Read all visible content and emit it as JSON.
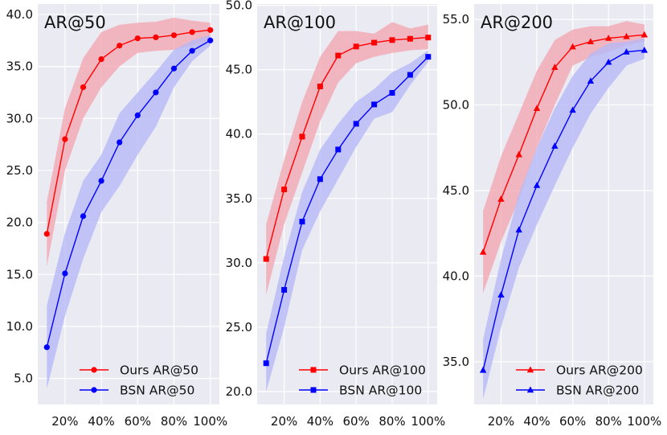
{
  "chart_data": [
    {
      "type": "line",
      "title": "AR@50",
      "x": [
        0.1,
        0.2,
        0.3,
        0.4,
        0.5,
        0.6,
        0.7,
        0.8,
        0.9,
        1.0
      ],
      "xticks": [
        "20%",
        "40%",
        "60%",
        "80%",
        "100%"
      ],
      "xtick_values": [
        0.2,
        0.4,
        0.6,
        0.8,
        1.0
      ],
      "xlim": [
        0.05,
        1.05
      ],
      "ylim": [
        2.5,
        41.0
      ],
      "yticks": [
        5.0,
        10.0,
        15.0,
        20.0,
        25.0,
        30.0,
        35.0,
        40.0
      ],
      "yticklabels": [
        "5.0",
        "10.0",
        "15.0",
        "20.0",
        "25.0",
        "30.0",
        "35.0",
        "40.0"
      ],
      "grid": true,
      "legend": "lower-right",
      "marker": "circle",
      "series": [
        {
          "name": "Ours AR@50",
          "color": "#ff0000",
          "values": [
            18.9,
            28.0,
            33.0,
            35.7,
            37.0,
            37.7,
            37.8,
            38.0,
            38.3,
            38.5
          ],
          "lower": [
            15.8,
            25.0,
            30.0,
            33.0,
            35.0,
            36.3,
            36.5,
            36.6,
            37.0,
            37.5
          ],
          "upper": [
            22.0,
            31.0,
            35.8,
            38.3,
            39.0,
            39.2,
            39.3,
            39.7,
            39.4,
            39.2
          ]
        },
        {
          "name": "BSN AR@50",
          "color": "#0000ff",
          "values": [
            8.0,
            15.1,
            20.6,
            24.0,
            27.7,
            30.3,
            32.5,
            34.8,
            36.5,
            37.5
          ],
          "lower": [
            4.0,
            11.0,
            16.5,
            21.0,
            23.5,
            26.5,
            29.2,
            33.0,
            35.5,
            37.0
          ],
          "upper": [
            12.0,
            19.0,
            24.0,
            26.5,
            30.5,
            32.5,
            34.5,
            36.6,
            37.5,
            38.0
          ]
        }
      ]
    },
    {
      "type": "line",
      "title": "AR@100",
      "x": [
        0.1,
        0.2,
        0.3,
        0.4,
        0.5,
        0.6,
        0.7,
        0.8,
        0.9,
        1.0
      ],
      "xticks": [
        "20%",
        "40%",
        "60%",
        "80%",
        "100%"
      ],
      "xtick_values": [
        0.2,
        0.4,
        0.6,
        0.8,
        1.0
      ],
      "xlim": [
        0.05,
        1.05
      ],
      "ylim": [
        19.0,
        50.1
      ],
      "yticks": [
        20.0,
        25.0,
        30.0,
        35.0,
        40.0,
        45.0,
        50.0
      ],
      "yticklabels": [
        "20.0",
        "25.0",
        "30.0",
        "35.0",
        "40.0",
        "45.0",
        "50.0"
      ],
      "grid": true,
      "legend": "lower-right",
      "marker": "square",
      "series": [
        {
          "name": "Ours AR@100",
          "color": "#ff0000",
          "values": [
            30.3,
            35.7,
            39.8,
            43.7,
            46.1,
            46.8,
            47.1,
            47.3,
            47.4,
            47.5
          ],
          "lower": [
            27.5,
            33.0,
            37.0,
            41.0,
            44.0,
            45.5,
            46.0,
            46.3,
            46.5,
            46.6
          ],
          "upper": [
            33.0,
            38.0,
            42.5,
            46.0,
            48.0,
            48.0,
            47.8,
            48.7,
            48.2,
            48.5
          ]
        },
        {
          "name": "BSN AR@100",
          "color": "#0000ff",
          "values": [
            22.2,
            27.9,
            33.2,
            36.5,
            38.8,
            40.8,
            42.3,
            43.2,
            44.6,
            46.0
          ],
          "lower": [
            20.0,
            25.0,
            31.0,
            34.0,
            36.5,
            39.0,
            41.2,
            41.7,
            43.8,
            45.6
          ],
          "upper": [
            24.5,
            30.5,
            35.5,
            38.8,
            40.8,
            42.5,
            43.5,
            44.8,
            45.5,
            46.5
          ]
        }
      ]
    },
    {
      "type": "line",
      "title": "AR@200",
      "x": [
        0.1,
        0.2,
        0.3,
        0.4,
        0.5,
        0.6,
        0.7,
        0.8,
        0.9,
        1.0
      ],
      "xticks": [
        "20%",
        "40%",
        "60%",
        "80%",
        "100%"
      ],
      "xtick_values": [
        0.2,
        0.4,
        0.6,
        0.8,
        1.0
      ],
      "xlim": [
        0.05,
        1.05
      ],
      "ylim": [
        32.5,
        55.9
      ],
      "yticks": [
        35.0,
        40.0,
        45.0,
        50.0,
        55.0
      ],
      "yticklabels": [
        "35.0",
        "40.0",
        "45.0",
        "50.0",
        "55.0"
      ],
      "grid": true,
      "legend": "lower-right",
      "marker": "triangle",
      "series": [
        {
          "name": "Ours AR@200",
          "color": "#ff0000",
          "values": [
            41.4,
            44.5,
            47.1,
            49.8,
            52.2,
            53.4,
            53.7,
            53.9,
            54.0,
            54.1
          ],
          "lower": [
            39.0,
            42.0,
            44.5,
            47.5,
            50.0,
            52.3,
            52.8,
            53.1,
            53.5,
            53.7
          ],
          "upper": [
            43.8,
            47.0,
            49.5,
            52.0,
            53.8,
            54.4,
            54.6,
            54.6,
            54.9,
            54.7
          ]
        },
        {
          "name": "BSN AR@200",
          "color": "#0000ff",
          "values": [
            34.5,
            38.9,
            42.7,
            45.3,
            47.6,
            49.7,
            51.4,
            52.5,
            53.1,
            53.2
          ],
          "lower": [
            32.8,
            37.0,
            40.5,
            43.0,
            45.3,
            47.5,
            49.5,
            51.0,
            52.3,
            52.7
          ],
          "upper": [
            36.3,
            41.0,
            44.8,
            47.5,
            49.8,
            51.7,
            53.0,
            53.6,
            53.7,
            53.9
          ]
        }
      ]
    }
  ]
}
